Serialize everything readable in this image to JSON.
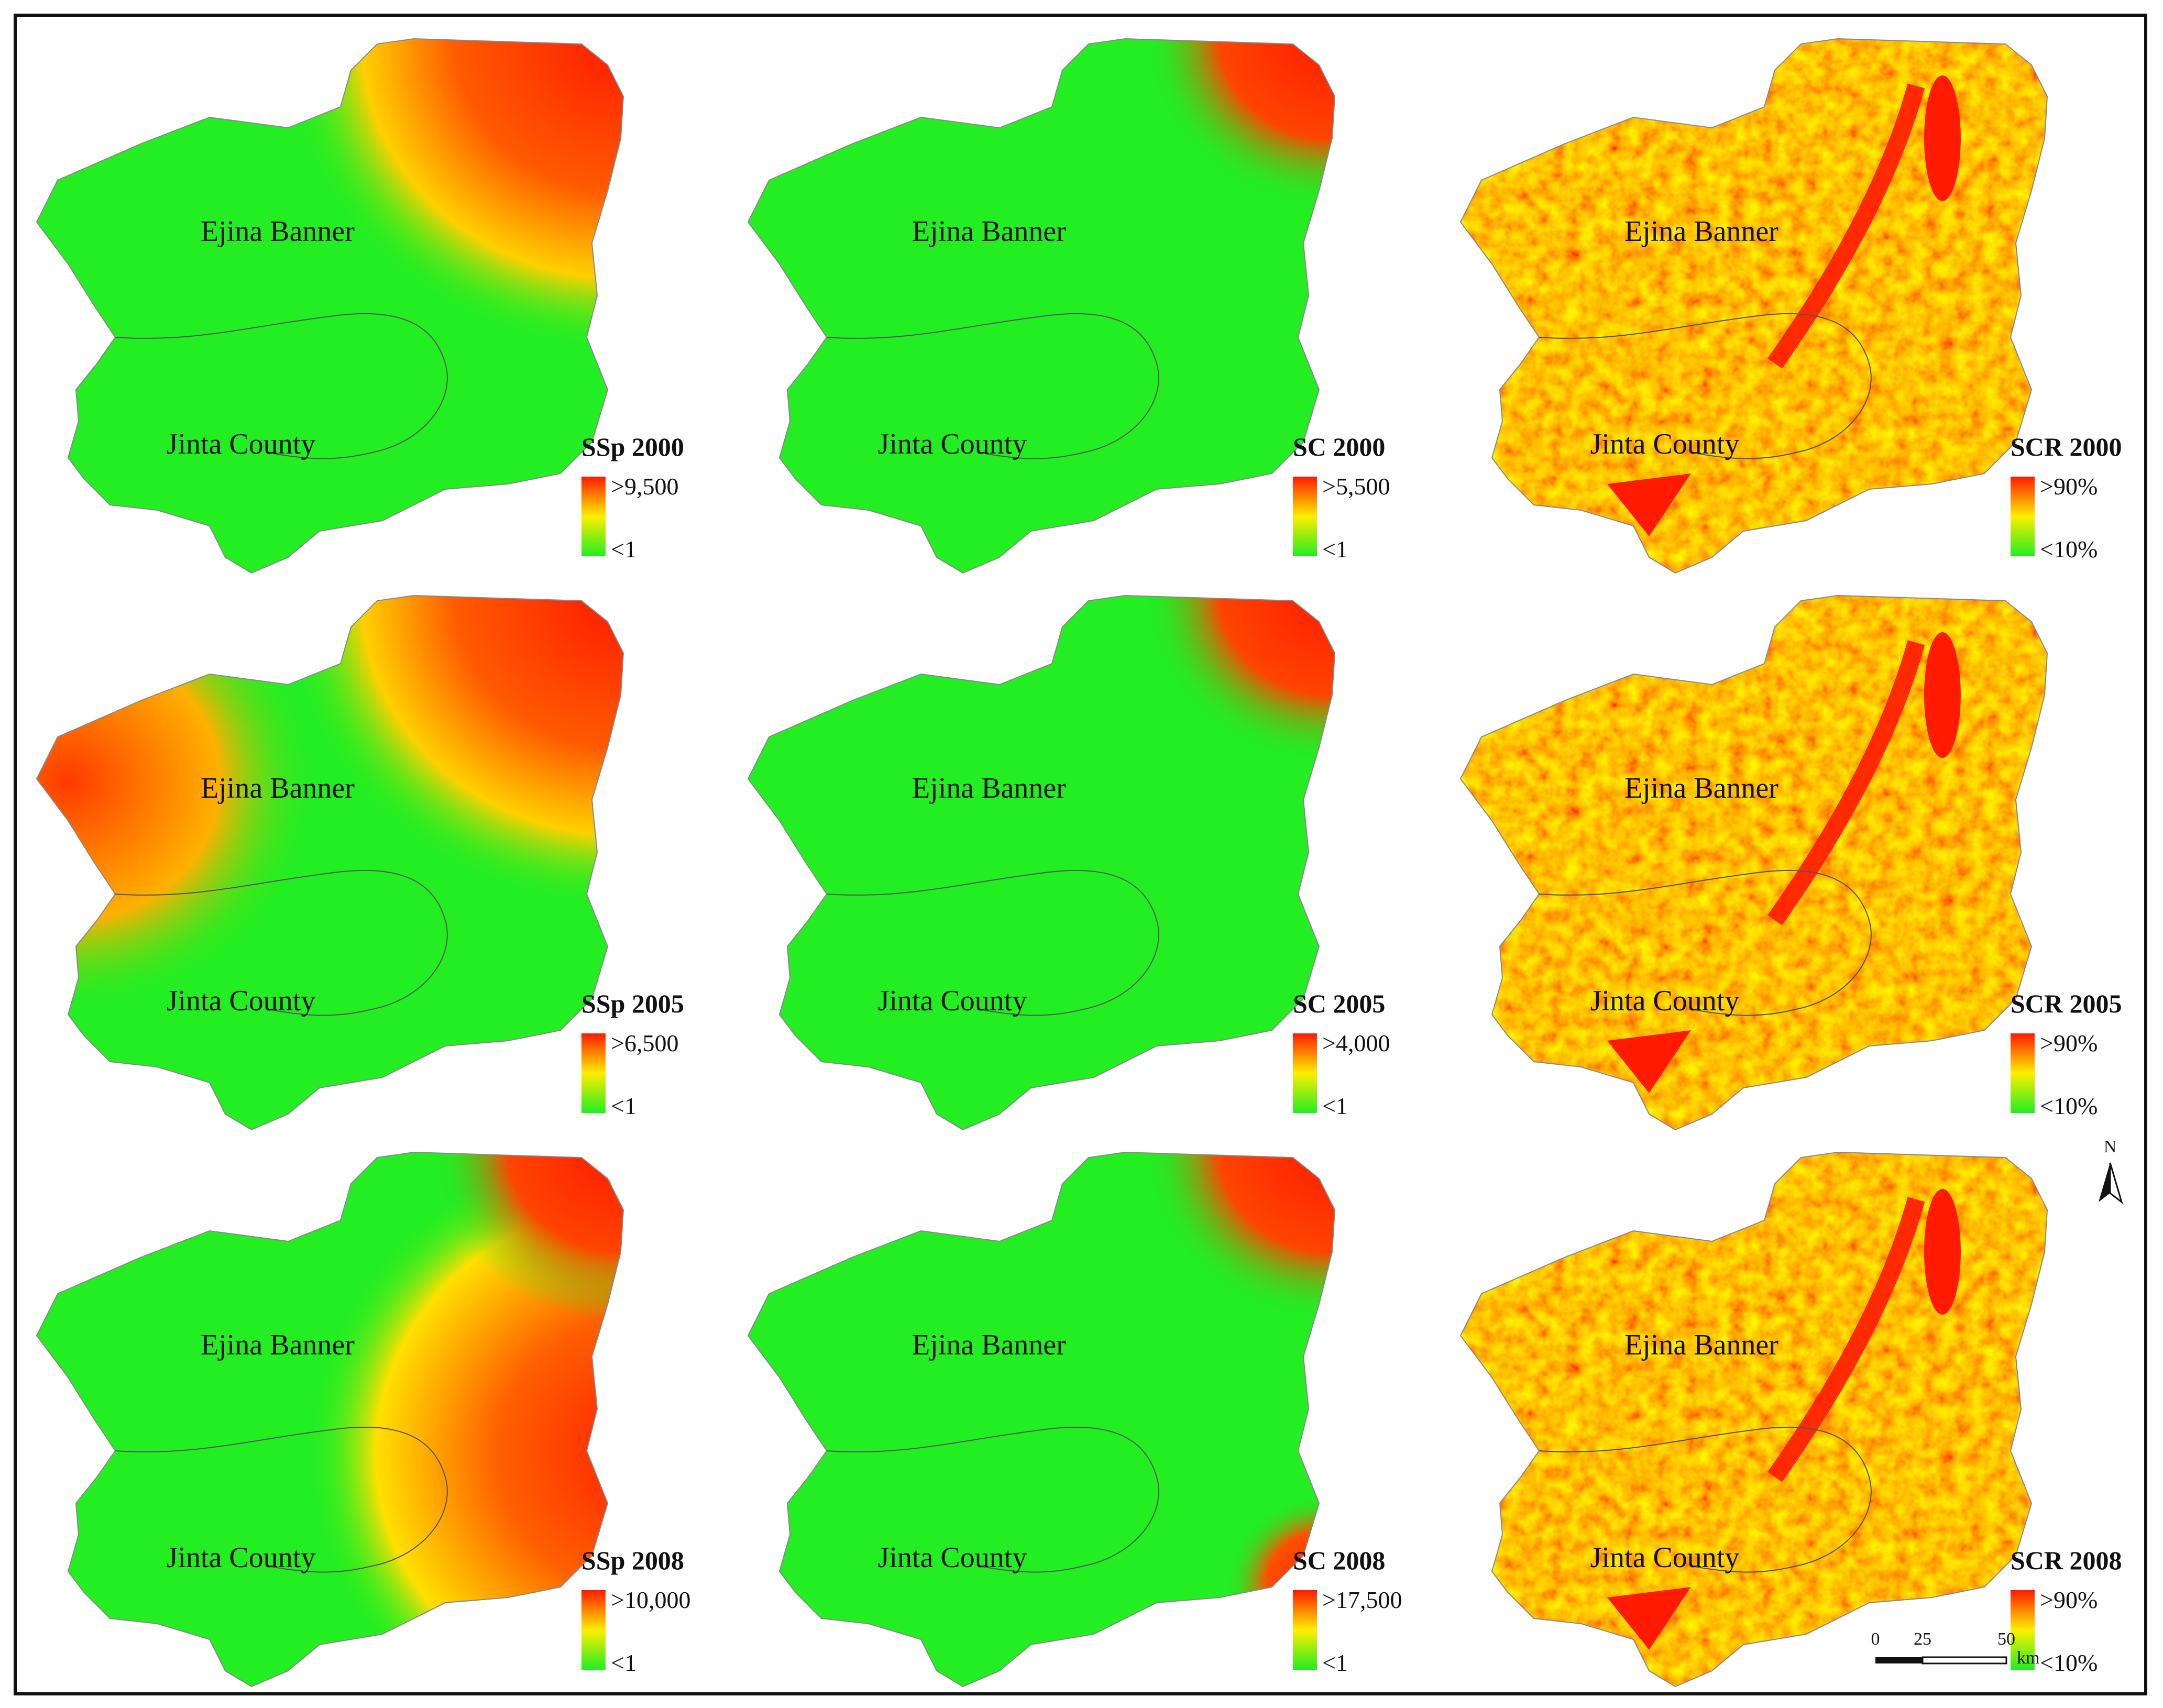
{
  "colors": {
    "low": "#22ee22",
    "mid": "#ffee00",
    "high": "#ff1a00",
    "boundary": "#555555"
  },
  "place_labels": {
    "upper": "Ejina Banner",
    "lower": "Jinta County"
  },
  "panels": [
    {
      "title": "SSp 2000",
      "legend_high": ">9,500",
      "legend_low": "<1",
      "hot": "ne"
    },
    {
      "title": "SC 2000",
      "legend_high": ">5,500",
      "legend_low": "<1",
      "hot": "ne-tip"
    },
    {
      "title": "SCR 2000",
      "legend_high": ">90%",
      "legend_low": "<10%",
      "hot": "mosaic"
    },
    {
      "title": "SSp 2005",
      "legend_high": ">6,500",
      "legend_low": "<1",
      "hot": "ne-west"
    },
    {
      "title": "SC 2005",
      "legend_high": ">4,000",
      "legend_low": "<1",
      "hot": "ne-tip"
    },
    {
      "title": "SCR 2005",
      "legend_high": ">90%",
      "legend_low": "<10%",
      "hot": "mosaic"
    },
    {
      "title": "SSp 2008",
      "legend_high": ">10,000",
      "legend_low": "<1",
      "hot": "east"
    },
    {
      "title": "SC 2008",
      "legend_high": ">17,500",
      "legend_low": "<1",
      "hot": "ne-se"
    },
    {
      "title": "SCR 2008",
      "legend_high": ">90%",
      "legend_low": "<10%",
      "hot": "mosaic"
    }
  ],
  "north_arrow": {
    "label": "N"
  },
  "scale_bar": {
    "ticks": [
      "0",
      "25",
      "50"
    ],
    "unit": "km"
  }
}
